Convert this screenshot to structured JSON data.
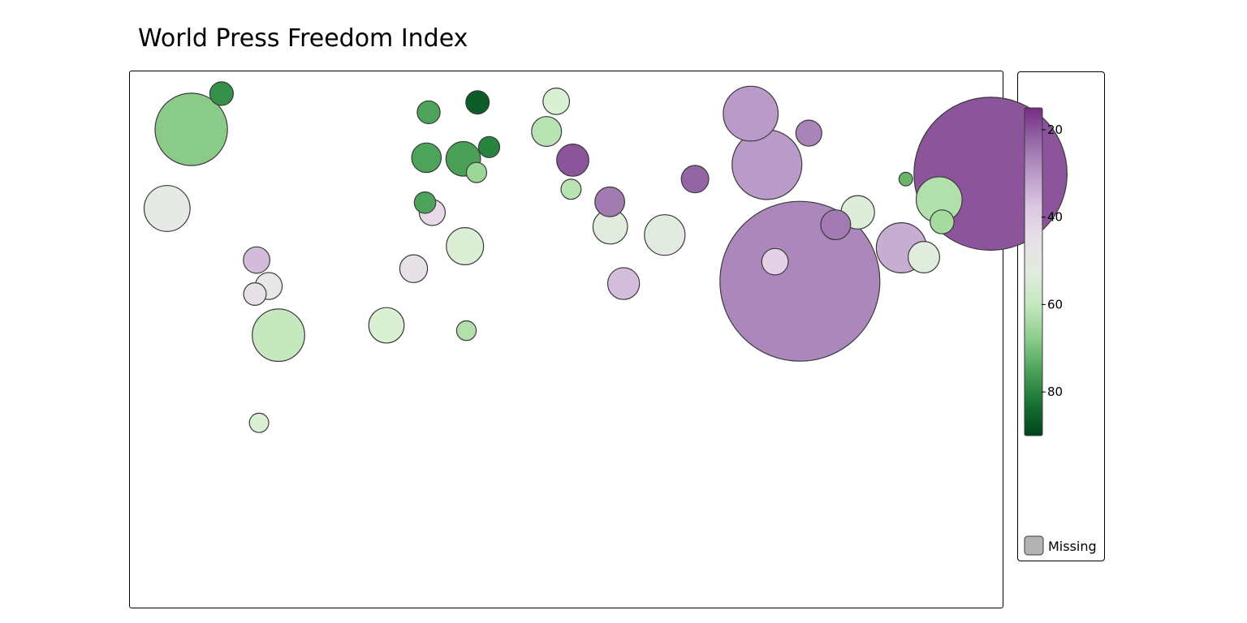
{
  "title": "World Press Freedom Index",
  "colors": {
    "palette": [
      "#00441b",
      "#1b7837",
      "#5aae61",
      "#a6dba0",
      "#d9f0d3",
      "#e8e8e8",
      "#e7d4e8",
      "#c2a5cf",
      "#9970ab",
      "#762a83"
    ],
    "missing": "#b3b3b3",
    "stroke": "#3a3a3a"
  },
  "legend": {
    "ticks": [
      "20",
      "40",
      "60",
      "80"
    ],
    "tick_values": [
      20,
      40,
      60,
      80
    ],
    "range": [
      15,
      90
    ],
    "missing_label": "Missing"
  },
  "chart_data": {
    "type": "bubble-map",
    "title": "World Press Freedom Index",
    "color_scale": {
      "variable": "score",
      "min": 15,
      "max": 90,
      "ticks": [
        20,
        40,
        60,
        80
      ],
      "low_color": "purple",
      "high_color": "dark green"
    },
    "legend_placement": "right",
    "missing_label": "Missing",
    "bubbles": [
      {
        "lon": 175.0,
        "lat": 62.0,
        "size": 85.7,
        "score": 20.0
      },
      {
        "lon": 96.3,
        "lat": 21.8,
        "size": 89.5,
        "score": 27.0
      },
      {
        "lon": 100.0,
        "lat": 77.2,
        "size": 14.5,
        "score": 26.5
      },
      {
        "lon": 120.2,
        "lat": 47.6,
        "size": 18.7,
        "score": 54.0
      },
      {
        "lon": 82.7,
        "lat": 65.4,
        "size": 39.1,
        "score": 30.0
      },
      {
        "lon": 76.0,
        "lat": 84.5,
        "size": 30.7,
        "score": 30.0
      },
      {
        "lon": 138.2,
        "lat": 34.3,
        "size": 28.1,
        "score": 33.0
      },
      {
        "lon": 147.5,
        "lat": 30.8,
        "size": 17.6,
        "score": 53.0
      },
      {
        "lon": 53.0,
        "lat": 60.0,
        "size": 15.4,
        "score": 22.0
      },
      {
        "lon": 17.8,
        "lat": 51.5,
        "size": 16.6,
        "score": 25.0
      },
      {
        "lon": 23.5,
        "lat": 20.9,
        "size": 17.8,
        "score": 36.0
      },
      {
        "lon": 18.0,
        "lat": 42.2,
        "size": 19.4,
        "score": 52.0
      },
      {
        "lon": 40.5,
        "lat": 39.1,
        "size": 22.7,
        "score": 51.5
      },
      {
        "lon": 86.0,
        "lat": 29.1,
        "size": 14.8,
        "score": 39.5
      },
      {
        "lon": 111.1,
        "lat": 42.9,
        "size": 16.7,
        "score": 25.0
      },
      {
        "lon": 153.8,
        "lat": 52.3,
        "size": 25.7,
        "score": 63.0
      },
      {
        "lon": 140.0,
        "lat": 60.0,
        "size": 7.6,
        "score": 72.0
      },
      {
        "lon": 155.0,
        "lat": 44.0,
        "size": 13.4,
        "score": 65.0
      },
      {
        "lon": 1.8,
        "lat": 56.2,
        "size": 11.3,
        "score": 62.0
      },
      {
        "lon": -42.7,
        "lat": 67.6,
        "size": 19.4,
        "score": 75.5
      },
      {
        "lon": -42.0,
        "lat": 34.9,
        "size": 20.8,
        "score": 56.0
      },
      {
        "lon": -74.4,
        "lat": 5.3,
        "size": 19.8,
        "score": 56.7
      },
      {
        "lon": -41.4,
        "lat": 3.3,
        "size": 11.0,
        "score": 63.0
      },
      {
        "lon": -4.3,
        "lat": 89.1,
        "size": 14.8,
        "score": 56.5
      },
      {
        "lon": -63.2,
        "lat": 26.5,
        "size": 15.5,
        "score": 45.5
      },
      {
        "lon": -55.5,
        "lat": 47.5,
        "size": 14.5,
        "score": 42.0
      },
      {
        "lon": -165.0,
        "lat": 49.0,
        "size": 25.7,
        "score": 50.0
      },
      {
        "lon": -155.0,
        "lat": 78.6,
        "size": 40.5,
        "score": 68.0
      },
      {
        "lon": -142.5,
        "lat": 92.0,
        "size": 13.2,
        "score": 78.0
      },
      {
        "lon": -128.0,
        "lat": 29.7,
        "size": 14.8,
        "score": 35.5
      },
      {
        "lon": -123.0,
        "lat": 20.0,
        "size": 15.1,
        "score": 49.0
      },
      {
        "lon": -128.7,
        "lat": 17.0,
        "size": 12.6,
        "score": 46.0
      },
      {
        "lon": -119.0,
        "lat": 1.6,
        "size": 29.4,
        "score": 60.0
      },
      {
        "lon": -127.0,
        "lat": -31.2,
        "size": 10.8,
        "score": 56.5
      },
      {
        "lon": 2.5,
        "lat": 67.1,
        "size": 18.0,
        "score": 20.0
      },
      {
        "lon": -8.3,
        "lat": 77.8,
        "size": 16.7,
        "score": 62.0
      },
      {
        "lon": -57.0,
        "lat": 85.0,
        "size": 12.8,
        "score": 75.0
      },
      {
        "lon": -36.8,
        "lat": 88.7,
        "size": 13.1,
        "score": 86.0
      },
      {
        "lon": -37.2,
        "lat": 62.5,
        "size": 11.4,
        "score": 66.0
      },
      {
        "lon": -57.9,
        "lat": 68.0,
        "size": 16.5,
        "score": 75.0
      },
      {
        "lon": -58.5,
        "lat": 51.2,
        "size": 12.0,
        "score": 75.0
      },
      {
        "lon": -32.0,
        "lat": 72.0,
        "size": 11.8,
        "score": 80.0
      }
    ]
  }
}
